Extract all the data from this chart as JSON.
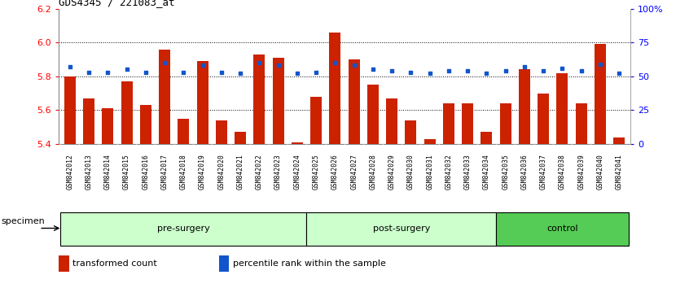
{
  "title": "GDS4345 / 221083_at",
  "categories": [
    "GSM842012",
    "GSM842013",
    "GSM842014",
    "GSM842015",
    "GSM842016",
    "GSM842017",
    "GSM842018",
    "GSM842019",
    "GSM842020",
    "GSM842021",
    "GSM842022",
    "GSM842023",
    "GSM842024",
    "GSM842025",
    "GSM842026",
    "GSM842027",
    "GSM842028",
    "GSM842029",
    "GSM842030",
    "GSM842031",
    "GSM842032",
    "GSM842033",
    "GSM842034",
    "GSM842035",
    "GSM842036",
    "GSM842037",
    "GSM842038",
    "GSM842039",
    "GSM842040",
    "GSM842041"
  ],
  "red_values": [
    5.8,
    5.67,
    5.61,
    5.77,
    5.63,
    5.96,
    5.55,
    5.89,
    5.54,
    5.47,
    5.93,
    5.91,
    5.41,
    5.68,
    6.06,
    5.9,
    5.75,
    5.67,
    5.54,
    5.43,
    5.64,
    5.64,
    5.47,
    5.64,
    5.84,
    5.7,
    5.82,
    5.64,
    5.99,
    5.44
  ],
  "blue_values": [
    57,
    53,
    53,
    55,
    53,
    60,
    53,
    58,
    53,
    52,
    60,
    58,
    52,
    53,
    60,
    58,
    55,
    54,
    53,
    52,
    54,
    54,
    52,
    54,
    57,
    54,
    56,
    54,
    59,
    52
  ],
  "group_labels": [
    "pre-surgery",
    "post-surgery",
    "control"
  ],
  "group_ranges": [
    [
      0,
      13
    ],
    [
      13,
      23
    ],
    [
      23,
      30
    ]
  ],
  "ylim_left": [
    5.4,
    6.2
  ],
  "ylim_right": [
    0,
    100
  ],
  "yticks_left": [
    5.4,
    5.6,
    5.8,
    6.0,
    6.2
  ],
  "yticks_right": [
    0,
    25,
    50,
    75,
    100
  ],
  "ytick_labels_right": [
    "0",
    "25",
    "50",
    "75",
    "100%"
  ],
  "bar_color": "#cc2200",
  "blue_color": "#1155cc",
  "bg_color": "#ffffff",
  "base_value": 5.4,
  "legend_items": [
    {
      "color": "#cc2200",
      "label": "transformed count"
    },
    {
      "color": "#1155cc",
      "label": "percentile rank within the sample"
    }
  ],
  "specimen_label": "specimen",
  "light_green": "#ccffcc",
  "mid_green": "#55cc55",
  "xtick_bg": "#cccccc"
}
